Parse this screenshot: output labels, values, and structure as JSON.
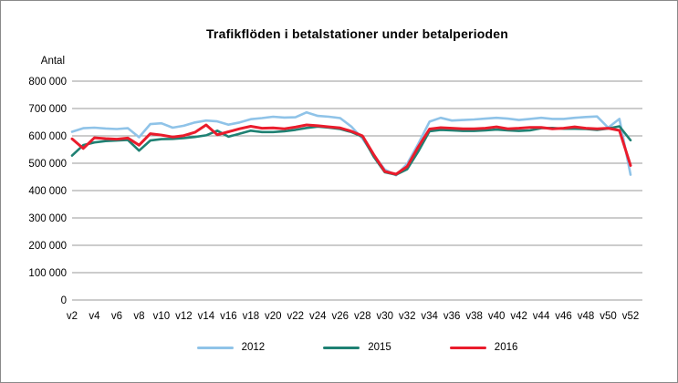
{
  "title": "Trafikflöden i betalstationer under betalperioden",
  "y_axis_title": "Antal",
  "legend": {
    "items": [
      {
        "label": "2012",
        "color": "#8FC3E8"
      },
      {
        "label": "2015",
        "color": "#1F8173"
      },
      {
        "label": "2016",
        "color": "#EA1C2C"
      }
    ]
  },
  "chart_data": {
    "type": "line",
    "title": "Trafikflöden i betalstationer under betalperioden",
    "xlabel": "",
    "ylabel": "Antal",
    "ylim": [
      0,
      800000
    ],
    "grid": true,
    "legend_position": "bottom",
    "y_ticks": [
      "0",
      "100 000",
      "200 000",
      "300 000",
      "400 000",
      "500 000",
      "600 000",
      "700 000",
      "800 000"
    ],
    "x_tick_labels": [
      "v2",
      "v4",
      "v6",
      "v8",
      "v10",
      "v12",
      "v14",
      "v16",
      "v18",
      "v20",
      "v22",
      "v24",
      "v26",
      "v28",
      "v30",
      "v32",
      "v34",
      "v36",
      "v38",
      "v40",
      "v42",
      "v44",
      "v46",
      "v48",
      "v50",
      "v52"
    ],
    "x": [
      "v2",
      "v3",
      "v4",
      "v5",
      "v6",
      "v7",
      "v8",
      "v9",
      "v10",
      "v11",
      "v12",
      "v13",
      "v14",
      "v15",
      "v16",
      "v17",
      "v18",
      "v19",
      "v20",
      "v21",
      "v22",
      "v23",
      "v24",
      "v25",
      "v26",
      "v27",
      "v28",
      "v29",
      "v30",
      "v31",
      "v32",
      "v33",
      "v34",
      "v35",
      "v36",
      "v37",
      "v38",
      "v39",
      "v40",
      "v41",
      "v42",
      "v43",
      "v44",
      "v45",
      "v46",
      "v47",
      "v48",
      "v49",
      "v50",
      "v51",
      "v52"
    ],
    "series": [
      {
        "name": "2012",
        "color": "#8FC3E8",
        "stroke_width": 2.6,
        "values": [
          615000,
          628000,
          630000,
          627000,
          625000,
          628000,
          595000,
          643000,
          646000,
          630000,
          637000,
          649000,
          656000,
          653000,
          641000,
          649000,
          661000,
          665000,
          670000,
          667000,
          668000,
          686000,
          673000,
          670000,
          665000,
          634000,
          590000,
          530000,
          477000,
          456000,
          498000,
          571000,
          652000,
          666000,
          656000,
          658000,
          660000,
          663000,
          666000,
          663000,
          658000,
          662000,
          666000,
          662000,
          662000,
          666000,
          669000,
          671000,
          630000,
          662000,
          458000
        ]
      },
      {
        "name": "2015",
        "color": "#1F8173",
        "stroke_width": 2.6,
        "values": [
          528000,
          566000,
          576000,
          581000,
          583000,
          585000,
          546000,
          583000,
          588000,
          589000,
          592000,
          596000,
          602000,
          619000,
          597000,
          608000,
          619000,
          614000,
          614000,
          617000,
          622000,
          629000,
          634000,
          630000,
          625000,
          614000,
          597000,
          524000,
          467000,
          458000,
          478000,
          543000,
          617000,
          622000,
          620000,
          618000,
          618000,
          620000,
          623000,
          620000,
          618000,
          620000,
          628000,
          629000,
          626000,
          626000,
          625000,
          622000,
          627000,
          635000,
          584000
        ]
      },
      {
        "name": "2016",
        "color": "#EA1C2C",
        "stroke_width": 3,
        "values": [
          589000,
          554000,
          593000,
          590000,
          588000,
          592000,
          566000,
          608000,
          603000,
          596000,
          601000,
          613000,
          640000,
          604000,
          615000,
          626000,
          635000,
          628000,
          629000,
          626000,
          632000,
          640000,
          637000,
          633000,
          629000,
          617000,
          600000,
          532000,
          470000,
          460000,
          488000,
          560000,
          625000,
          630000,
          628000,
          626000,
          626000,
          628000,
          633000,
          626000,
          628000,
          631000,
          631000,
          626000,
          628000,
          633000,
          628000,
          626000,
          628000,
          620000,
          492000
        ]
      }
    ]
  },
  "style": {
    "gridline_color": "#999999",
    "text_color": "#000000",
    "background": "#ffffff"
  }
}
